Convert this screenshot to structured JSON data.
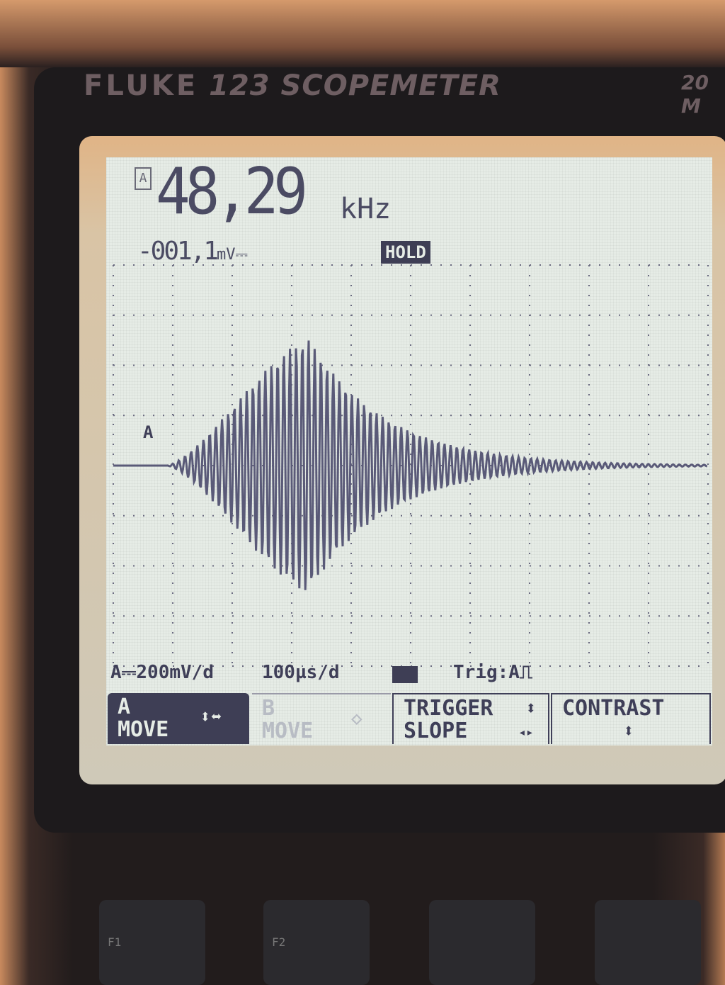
{
  "device": {
    "brand": "FLUKE",
    "model": "123 SCOPEMETER",
    "bandwidth": "20 M"
  },
  "readout": {
    "channel": "A",
    "frequency": "48,29",
    "frequency_unit": "kHz",
    "dc_voltage": "-001,1",
    "dc_voltage_unit": "mV⎓",
    "hold": "HOLD"
  },
  "trace": {
    "channel_marker": "A",
    "color": "#5a5a78"
  },
  "status": {
    "volts_per_div": "A⎓200mV/d",
    "time_per_div": "100µs/d",
    "battery_icon": "battery-icon",
    "trigger": "Trig:A",
    "trigger_edge_icon": "rising-edge-icon"
  },
  "softkeys": [
    {
      "line1": "A",
      "line2": "MOVE",
      "icon": "⬍⬌",
      "active": true
    },
    {
      "line1": "B",
      "line2": "MOVE",
      "icon": "◇",
      "active": false
    },
    {
      "line1": "TRIGGER",
      "line2": "SLOPE",
      "icon1": "⬍",
      "icon2": "◂▸",
      "active": false
    },
    {
      "line1": "CONTRAST",
      "line2": "",
      "icon": "⬍",
      "active": false
    }
  ],
  "function_keys": [
    "F1",
    "F2"
  ]
}
